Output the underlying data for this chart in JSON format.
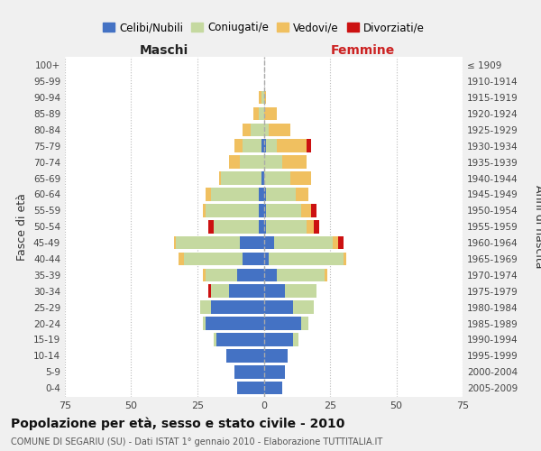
{
  "age_groups": [
    "0-4",
    "5-9",
    "10-14",
    "15-19",
    "20-24",
    "25-29",
    "30-34",
    "35-39",
    "40-44",
    "45-49",
    "50-54",
    "55-59",
    "60-64",
    "65-69",
    "70-74",
    "75-79",
    "80-84",
    "85-89",
    "90-94",
    "95-99",
    "100+"
  ],
  "birth_years": [
    "2005-2009",
    "2000-2004",
    "1995-1999",
    "1990-1994",
    "1985-1989",
    "1980-1984",
    "1975-1979",
    "1970-1974",
    "1965-1969",
    "1960-1964",
    "1955-1959",
    "1950-1954",
    "1945-1949",
    "1940-1944",
    "1935-1939",
    "1930-1934",
    "1925-1929",
    "1920-1924",
    "1915-1919",
    "1910-1914",
    "≤ 1909"
  ],
  "male": {
    "celibi": [
      10,
      11,
      14,
      18,
      22,
      20,
      13,
      10,
      8,
      9,
      2,
      2,
      2,
      1,
      0,
      1,
      0,
      0,
      0,
      0,
      0
    ],
    "coniugati": [
      0,
      0,
      0,
      1,
      1,
      4,
      7,
      12,
      22,
      24,
      17,
      20,
      18,
      15,
      9,
      7,
      5,
      2,
      1,
      0,
      0
    ],
    "vedovi": [
      0,
      0,
      0,
      0,
      0,
      0,
      0,
      1,
      2,
      1,
      0,
      1,
      2,
      1,
      4,
      3,
      3,
      2,
      1,
      0,
      0
    ],
    "divorziati": [
      0,
      0,
      0,
      0,
      0,
      0,
      1,
      0,
      0,
      0,
      2,
      0,
      0,
      0,
      0,
      0,
      0,
      0,
      0,
      0,
      0
    ]
  },
  "female": {
    "nubili": [
      7,
      8,
      9,
      11,
      14,
      11,
      8,
      5,
      2,
      4,
      1,
      1,
      1,
      0,
      0,
      1,
      0,
      0,
      0,
      0,
      0
    ],
    "coniugate": [
      0,
      0,
      0,
      2,
      3,
      8,
      12,
      18,
      28,
      22,
      15,
      13,
      11,
      10,
      7,
      4,
      2,
      0,
      0,
      0,
      0
    ],
    "vedove": [
      0,
      0,
      0,
      0,
      0,
      0,
      0,
      1,
      1,
      2,
      3,
      4,
      5,
      8,
      9,
      11,
      8,
      5,
      1,
      0,
      0
    ],
    "divorziate": [
      0,
      0,
      0,
      0,
      0,
      0,
      0,
      0,
      0,
      2,
      2,
      2,
      0,
      0,
      0,
      2,
      0,
      0,
      0,
      0,
      0
    ]
  },
  "color_celibi": "#4472c4",
  "color_coniugati": "#c5d9a0",
  "color_vedovi": "#f0c060",
  "color_divorziati": "#cc1111",
  "xlim": 75,
  "title": "Popolazione per età, sesso e stato civile - 2010",
  "subtitle": "COMUNE DI SEGARIU (SU) - Dati ISTAT 1° gennaio 2010 - Elaborazione TUTTITALIA.IT",
  "ylabel_left": "Fasce di età",
  "ylabel_right": "Anni di nascita",
  "xlabel_left": "Maschi",
  "xlabel_right": "Femmine",
  "bg_color": "#f0f0f0",
  "plot_bg_color": "#ffffff"
}
